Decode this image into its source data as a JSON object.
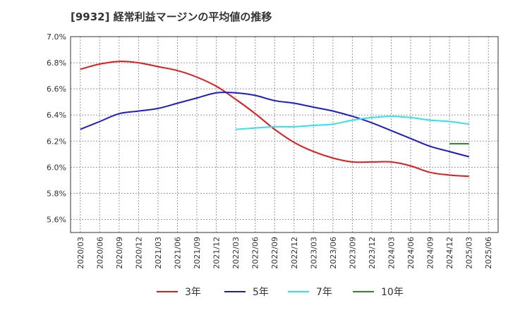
{
  "chart_data": {
    "type": "line",
    "title": "[9932]  経常利益マージンの平均値の推移",
    "xlabel": "",
    "ylabel": "",
    "ylim": [
      5.5,
      7.0
    ],
    "y_ticks": [
      "5.6%",
      "5.8%",
      "6.0%",
      "6.2%",
      "6.4%",
      "6.6%",
      "6.8%",
      "7.0%"
    ],
    "y_tick_values": [
      5.6,
      5.8,
      6.0,
      6.2,
      6.4,
      6.6,
      6.8,
      7.0
    ],
    "x_ticks": [
      "2020/03",
      "2020/06",
      "2020/09",
      "2020/12",
      "2021/03",
      "2021/06",
      "2021/09",
      "2021/12",
      "2022/03",
      "2022/06",
      "2022/09",
      "2022/12",
      "2023/03",
      "2023/06",
      "2023/09",
      "2023/12",
      "2024/03",
      "2024/06",
      "2024/09",
      "2024/12",
      "2025/03",
      "2025/06"
    ],
    "grid": true,
    "legend_position": "bottom",
    "series": [
      {
        "name": "3年",
        "color": "#e31a1c",
        "values": [
          6.75,
          6.79,
          6.81,
          6.8,
          6.77,
          6.74,
          6.69,
          6.62,
          6.52,
          6.41,
          6.29,
          6.19,
          6.12,
          6.07,
          6.04,
          6.04,
          6.04,
          6.01,
          5.96,
          5.94,
          5.93,
          null
        ]
      },
      {
        "name": "5年",
        "color": "#1c1ccc",
        "values": [
          6.29,
          6.35,
          6.41,
          6.43,
          6.45,
          6.49,
          6.53,
          6.57,
          6.57,
          6.55,
          6.51,
          6.49,
          6.46,
          6.43,
          6.39,
          6.34,
          6.28,
          6.22,
          6.16,
          6.12,
          6.08,
          null
        ]
      },
      {
        "name": "7年",
        "color": "#33e0f0",
        "values": [
          null,
          null,
          null,
          null,
          null,
          null,
          null,
          null,
          6.29,
          6.3,
          6.31,
          6.31,
          6.32,
          6.33,
          6.36,
          6.38,
          6.39,
          6.38,
          6.36,
          6.35,
          6.33,
          null
        ]
      },
      {
        "name": "10年",
        "color": "#2e8b2e",
        "values": [
          null,
          null,
          null,
          null,
          null,
          null,
          null,
          null,
          null,
          null,
          null,
          null,
          null,
          null,
          null,
          null,
          null,
          null,
          null,
          6.18,
          6.18,
          null
        ]
      }
    ]
  }
}
